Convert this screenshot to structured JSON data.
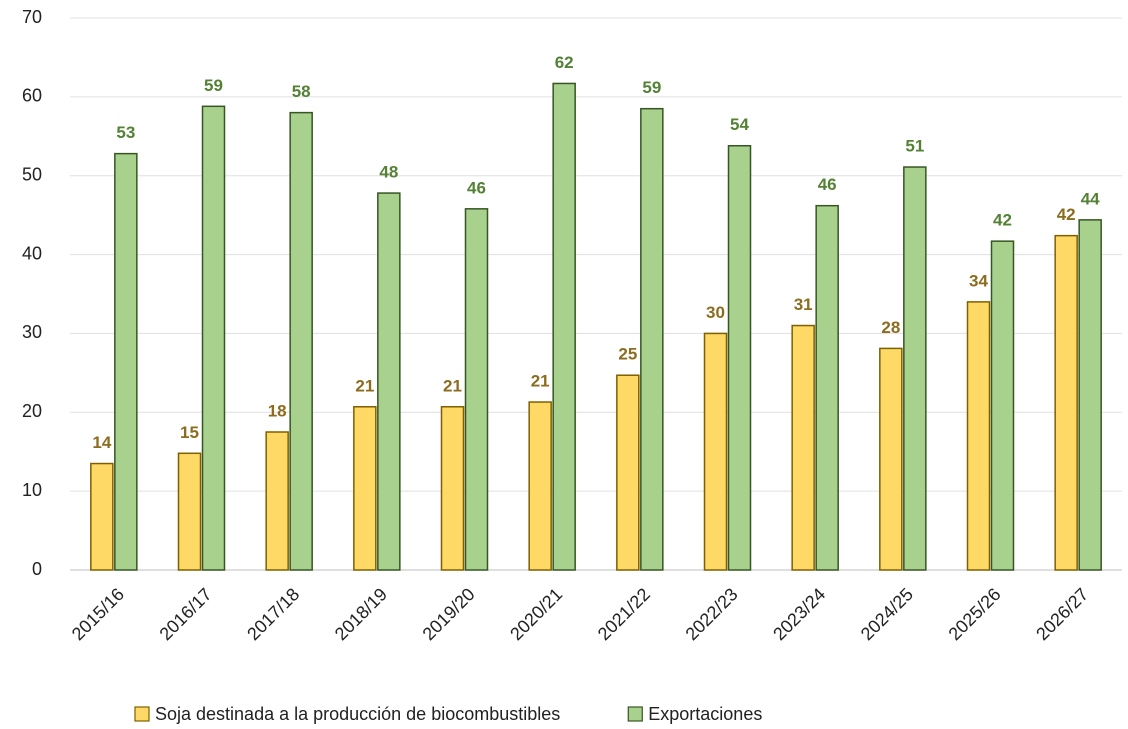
{
  "chart_data": {
    "type": "bar",
    "categories": [
      "2015/16",
      "2016/17",
      "2017/18",
      "2018/19",
      "2019/20",
      "2020/21",
      "2021/22",
      "2022/23",
      "2023/24",
      "2024/25",
      "2025/26",
      "2026/27"
    ],
    "series": [
      {
        "name": "Soja destinada a la producción de biocombustibles",
        "color": "#ffd966",
        "stroke": "#7f6000",
        "label_color": "#8c6d1f",
        "values": [
          13.5,
          14.8,
          17.5,
          20.7,
          20.7,
          21.3,
          24.7,
          30,
          31,
          28.1,
          34,
          42.4
        ],
        "value_labels": [
          "14",
          "15",
          "18",
          "21",
          "21",
          "21",
          "25",
          "30",
          "31",
          "28",
          "34",
          "42"
        ]
      },
      {
        "name": "Exportaciones",
        "color": "#a9d18e",
        "stroke": "#375623",
        "label_color": "#548235",
        "values": [
          52.8,
          58.8,
          58,
          47.8,
          45.8,
          61.7,
          58.5,
          53.8,
          46.2,
          51.1,
          41.7,
          44.4
        ],
        "value_labels": [
          "53",
          "59",
          "58",
          "48",
          "46",
          "62",
          "59",
          "54",
          "46",
          "51",
          "42",
          "44"
        ]
      }
    ],
    "ylim": [
      0,
      70
    ],
    "yticks": [
      0,
      10,
      20,
      30,
      40,
      50,
      60,
      70
    ],
    "grid": true
  }
}
